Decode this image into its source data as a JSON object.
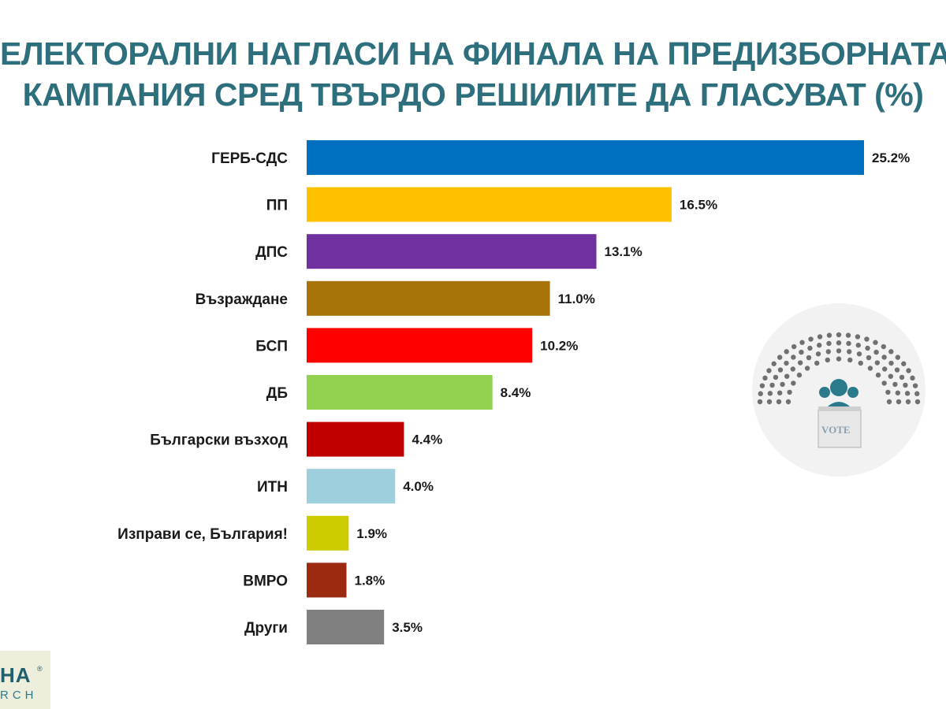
{
  "title": {
    "line1": "ЕЛЕКТОРАЛНИ НАГЛАСИ НА ФИНАЛА НА ПРЕДИЗБОРНАТА",
    "line2": "КАМПАНИЯ СРЕД ТВЪРДО РЕШИЛИТЕ ДА ГЛАСУВАТ (%)"
  },
  "chart_data": {
    "type": "bar",
    "orientation": "horizontal",
    "categories": [
      "ГЕРБ-СДС",
      "ПП",
      "ДПС",
      "Възраждане",
      "БСП",
      "ДБ",
      "Български възход",
      "ИТН",
      "Изправи се, България!",
      "ВМРО",
      "Други"
    ],
    "values": [
      25.2,
      16.5,
      13.1,
      11.0,
      10.2,
      8.4,
      4.4,
      4.0,
      1.9,
      1.8,
      3.5
    ],
    "value_labels": [
      "25.2%",
      "16.5%",
      "13.1%",
      "11.0%",
      "10.2%",
      "8.4%",
      "4.4%",
      "4.0%",
      "1.9%",
      "1.8%",
      "3.5%"
    ],
    "colors": [
      "#0070c0",
      "#ffc000",
      "#7030a0",
      "#a87308",
      "#ff0000",
      "#92d050",
      "#c00000",
      "#9ecfdc",
      "#cccc00",
      "#9c2a10",
      "#808080"
    ],
    "xlim": [
      0,
      25.2
    ],
    "grid": false,
    "legend": "none"
  },
  "logo": {
    "text_top": "HA",
    "registered": "®",
    "text_bottom": "RCH"
  },
  "badge": {
    "icon": "parliament-vote-icon",
    "ballot_text": "VOTE"
  }
}
